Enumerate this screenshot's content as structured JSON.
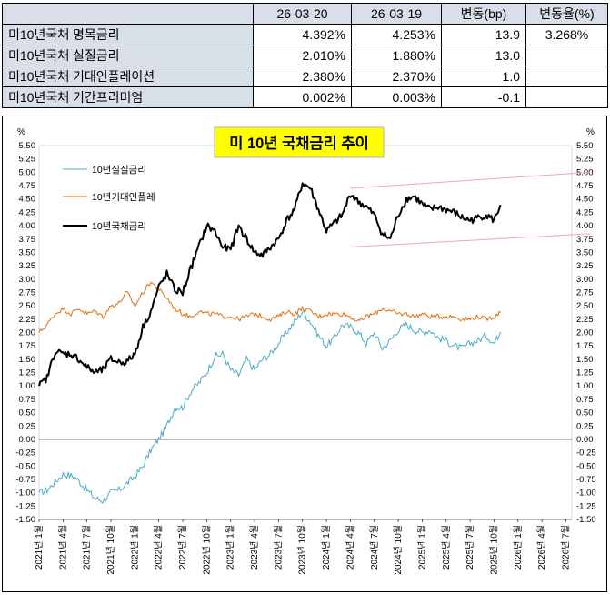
{
  "table": {
    "headers": [
      "",
      "26-03-20",
      "26-03-19",
      "변동(bp)",
      "변동율(%)"
    ],
    "rows": [
      {
        "label": "미10년국채 명목금리",
        "v1": "4.392%",
        "v2": "4.253%",
        "bp": "13.9",
        "pct": "3.268%"
      },
      {
        "label": "미10년국채 실질금리",
        "v1": "2.010%",
        "v2": "1.880%",
        "bp": "13.0",
        "pct": ""
      },
      {
        "label": "미10년국채 기대인플레이션",
        "v1": "2.380%",
        "v2": "2.370%",
        "bp": "1.0",
        "pct": ""
      },
      {
        "label": "미10년국채 기간프리미엄",
        "v1": "0.002%",
        "v2": "0.003%",
        "bp": "-0.1",
        "pct": ""
      }
    ]
  },
  "chart_data": {
    "type": "line",
    "title": "미 10년  국채금리  추이",
    "ylabel_left": "%",
    "ylabel_right": "%",
    "ylim": [
      -1.5,
      5.5
    ],
    "ytick_step": 0.25,
    "x_ticks": [
      "2021년 1월",
      "2021년 4월",
      "2021년 7월",
      "2021년 10월",
      "2022년 1월",
      "2022년 4월",
      "2022년 7월",
      "2022년 10월",
      "2023년 1월",
      "2023년 4월",
      "2023년 7월",
      "2023년 10월",
      "2024년 1월",
      "2024년 4월",
      "2024년 7월",
      "2024년 10월",
      "2025년 1월",
      "2025년 4월",
      "2025년 7월",
      "2025년 10월",
      "2026년 1월",
      "2026년 4월",
      "2026년 7월"
    ],
    "x_start_month_index": 0,
    "series": [
      {
        "name": "10년실질금리",
        "color": "#4bacc6",
        "width": 1,
        "anchors": [
          [
            0,
            -1.0
          ],
          [
            1,
            -0.95
          ],
          [
            3,
            -0.65
          ],
          [
            4.5,
            -0.7
          ],
          [
            6,
            -0.95
          ],
          [
            7,
            -1.1
          ],
          [
            8,
            -1.15
          ],
          [
            9,
            -1.0
          ],
          [
            10,
            -0.95
          ],
          [
            12,
            -0.7
          ],
          [
            13,
            -0.5
          ],
          [
            14,
            -0.2
          ],
          [
            15,
            0.0
          ],
          [
            16,
            0.25
          ],
          [
            17,
            0.6
          ],
          [
            18,
            0.6
          ],
          [
            19,
            0.9
          ],
          [
            20,
            1.05
          ],
          [
            21,
            1.25
          ],
          [
            22,
            1.55
          ],
          [
            23,
            1.6
          ],
          [
            24,
            1.3
          ],
          [
            25,
            1.2
          ],
          [
            26,
            1.5
          ],
          [
            27,
            1.3
          ],
          [
            28,
            1.5
          ],
          [
            29,
            1.6
          ],
          [
            30,
            1.8
          ],
          [
            31,
            2.0
          ],
          [
            32,
            2.2
          ],
          [
            33,
            2.4
          ],
          [
            34,
            2.2
          ],
          [
            35,
            1.95
          ],
          [
            36,
            1.75
          ],
          [
            37,
            1.9
          ],
          [
            38,
            2.15
          ],
          [
            39,
            2.1
          ],
          [
            40,
            2.0
          ],
          [
            41,
            1.8
          ],
          [
            42,
            2.0
          ],
          [
            43,
            1.7
          ],
          [
            44,
            1.85
          ],
          [
            45,
            2.05
          ],
          [
            46,
            2.15
          ],
          [
            47,
            2.05
          ],
          [
            48,
            2.0
          ],
          [
            49,
            2.05
          ],
          [
            50,
            1.9
          ],
          [
            51,
            1.85
          ],
          [
            52,
            1.75
          ],
          [
            53,
            1.7
          ],
          [
            54,
            1.8
          ],
          [
            55,
            1.85
          ],
          [
            56,
            1.95
          ],
          [
            57,
            1.8
          ],
          [
            57.8,
            2.01
          ]
        ]
      },
      {
        "name": "10년기대인플레",
        "color": "#e36c09",
        "width": 1,
        "anchors": [
          [
            0,
            2.0
          ],
          [
            1,
            2.15
          ],
          [
            2,
            2.35
          ],
          [
            3,
            2.45
          ],
          [
            4,
            2.35
          ],
          [
            5,
            2.45
          ],
          [
            6,
            2.35
          ],
          [
            7,
            2.4
          ],
          [
            8,
            2.3
          ],
          [
            9,
            2.5
          ],
          [
            10,
            2.55
          ],
          [
            11,
            2.75
          ],
          [
            12,
            2.5
          ],
          [
            13,
            2.75
          ],
          [
            14,
            2.95
          ],
          [
            15,
            2.8
          ],
          [
            16,
            2.65
          ],
          [
            17,
            2.45
          ],
          [
            18,
            2.35
          ],
          [
            19,
            2.3
          ],
          [
            20,
            2.4
          ],
          [
            21,
            2.35
          ],
          [
            22,
            2.35
          ],
          [
            23,
            2.3
          ],
          [
            24,
            2.3
          ],
          [
            25,
            2.25
          ],
          [
            26,
            2.3
          ],
          [
            27,
            2.35
          ],
          [
            28,
            2.3
          ],
          [
            29,
            2.25
          ],
          [
            30,
            2.3
          ],
          [
            31,
            2.4
          ],
          [
            32,
            2.35
          ],
          [
            33,
            2.45
          ],
          [
            34,
            2.4
          ],
          [
            35,
            2.3
          ],
          [
            36,
            2.35
          ],
          [
            37,
            2.35
          ],
          [
            38,
            2.35
          ],
          [
            39,
            2.3
          ],
          [
            40,
            2.2
          ],
          [
            41,
            2.3
          ],
          [
            42,
            2.35
          ],
          [
            43,
            2.45
          ],
          [
            44,
            2.4
          ],
          [
            45,
            2.35
          ],
          [
            46,
            2.35
          ],
          [
            47,
            2.3
          ],
          [
            48,
            2.35
          ],
          [
            49,
            2.3
          ],
          [
            50,
            2.3
          ],
          [
            51,
            2.3
          ],
          [
            52,
            2.3
          ],
          [
            53,
            2.25
          ],
          [
            54,
            2.25
          ],
          [
            55,
            2.3
          ],
          [
            56,
            2.25
          ],
          [
            57,
            2.3
          ],
          [
            57.8,
            2.38
          ]
        ]
      },
      {
        "name": "10년국채금리",
        "color": "#000000",
        "width": 2,
        "anchors": [
          [
            0,
            1.0
          ],
          [
            1,
            1.15
          ],
          [
            2,
            1.65
          ],
          [
            3,
            1.6
          ],
          [
            4,
            1.6
          ],
          [
            5,
            1.5
          ],
          [
            6,
            1.35
          ],
          [
            7,
            1.25
          ],
          [
            8,
            1.3
          ],
          [
            9,
            1.5
          ],
          [
            10,
            1.45
          ],
          [
            11,
            1.45
          ],
          [
            12,
            1.6
          ],
          [
            13,
            2.1
          ],
          [
            14,
            2.4
          ],
          [
            15,
            2.85
          ],
          [
            16,
            3.1
          ],
          [
            17,
            2.8
          ],
          [
            18,
            2.75
          ],
          [
            19,
            3.2
          ],
          [
            20,
            3.6
          ],
          [
            21,
            4.0
          ],
          [
            22,
            3.9
          ],
          [
            23,
            3.6
          ],
          [
            24,
            3.55
          ],
          [
            25,
            4.0
          ],
          [
            26,
            3.75
          ],
          [
            27,
            3.5
          ],
          [
            28,
            3.45
          ],
          [
            29,
            3.6
          ],
          [
            30,
            3.75
          ],
          [
            31,
            4.1
          ],
          [
            32,
            4.3
          ],
          [
            33,
            4.8
          ],
          [
            34,
            4.7
          ],
          [
            35,
            4.3
          ],
          [
            36,
            3.9
          ],
          [
            37,
            4.05
          ],
          [
            38,
            4.2
          ],
          [
            39,
            4.6
          ],
          [
            40,
            4.45
          ],
          [
            41,
            4.35
          ],
          [
            42,
            4.2
          ],
          [
            43,
            3.85
          ],
          [
            44,
            3.75
          ],
          [
            45,
            4.2
          ],
          [
            46,
            4.5
          ],
          [
            47,
            4.55
          ],
          [
            48,
            4.4
          ],
          [
            49,
            4.3
          ],
          [
            50,
            4.35
          ],
          [
            51,
            4.3
          ],
          [
            52,
            4.25
          ],
          [
            53,
            4.15
          ],
          [
            54,
            4.1
          ],
          [
            55,
            4.15
          ],
          [
            56,
            4.2
          ],
          [
            57,
            4.1
          ],
          [
            57.8,
            4.39
          ]
        ]
      }
    ],
    "trend_lines": [
      {
        "color": "#f4a6a6",
        "points": [
          [
            39,
            4.7
          ],
          [
            69,
            5.0
          ]
        ]
      },
      {
        "color": "#f4a6a6",
        "points": [
          [
            39,
            3.6
          ],
          [
            69,
            3.85
          ]
        ]
      }
    ]
  }
}
